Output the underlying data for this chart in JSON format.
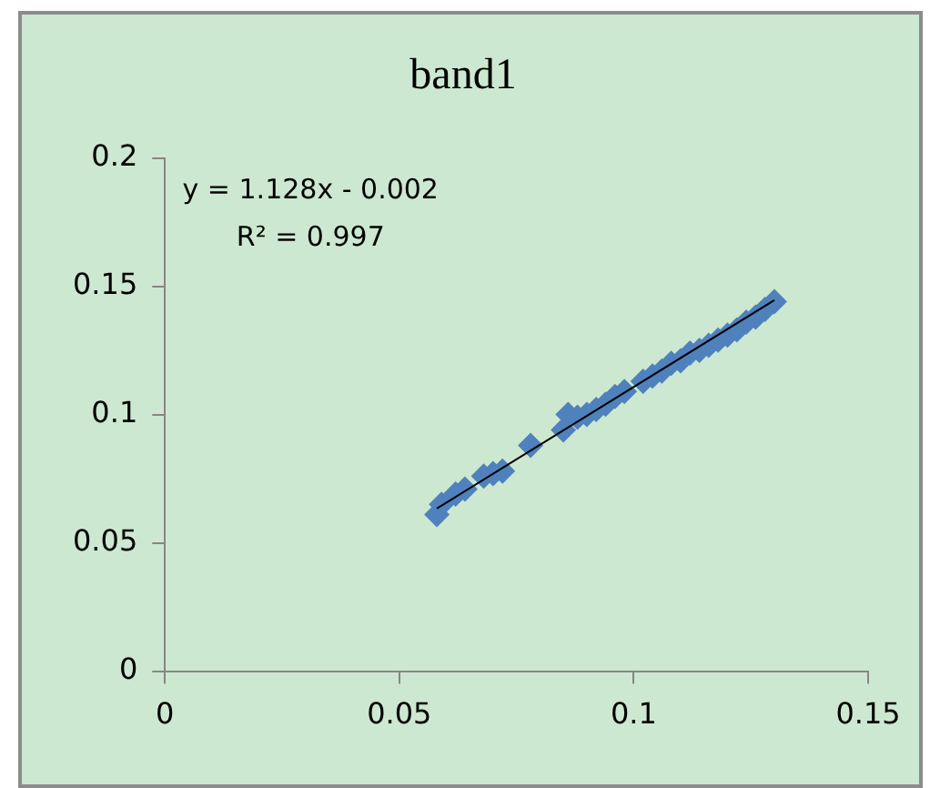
{
  "chart_data": {
    "type": "scatter",
    "title": "band1",
    "grid": false,
    "legend": false,
    "xlim": [
      0,
      0.15
    ],
    "xticks": [
      0,
      0.05,
      0.1,
      0.15
    ],
    "ylim": [
      0,
      0.2
    ],
    "yticks": [
      0,
      0.05,
      0.1,
      0.15,
      0.2
    ],
    "annotations": [
      "y = 1.128x - 0.002",
      "R² = 0.997"
    ],
    "series": [
      {
        "color": "#4f81bd",
        "marker": "diamond",
        "x": [
          0.058,
          0.059,
          0.062,
          0.064,
          0.068,
          0.07,
          0.072,
          0.078,
          0.085,
          0.086,
          0.088,
          0.09,
          0.092,
          0.094,
          0.096,
          0.098,
          0.102,
          0.104,
          0.106,
          0.108,
          0.11,
          0.112,
          0.114,
          0.116,
          0.118,
          0.12,
          0.122,
          0.124,
          0.126,
          0.128,
          0.13
        ],
        "values": [
          0.061,
          0.065,
          0.069,
          0.071,
          0.076,
          0.077,
          0.078,
          0.088,
          0.094,
          0.1,
          0.099,
          0.1,
          0.102,
          0.104,
          0.107,
          0.109,
          0.113,
          0.115,
          0.117,
          0.12,
          0.121,
          0.124,
          0.125,
          0.127,
          0.129,
          0.131,
          0.133,
          0.136,
          0.138,
          0.141,
          0.144
        ]
      },
      {
        "type": "line",
        "marker": "none",
        "color": "#000000",
        "x": [
          0.058,
          0.13
        ],
        "values": [
          0.0634,
          0.1446
        ]
      }
    ]
  }
}
